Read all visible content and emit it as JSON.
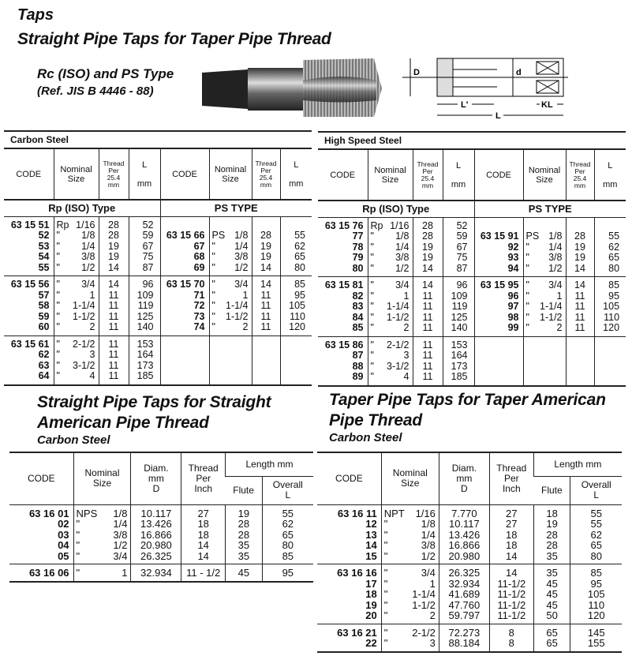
{
  "header": {
    "category": "Taps",
    "title": "Straight Pipe Taps for Taper Pipe Thread",
    "subtitle": "Rc (ISO) and PS Type",
    "reference": "(Ref. JIS B 4446 - 88)"
  },
  "diagram": {
    "labels": {
      "D": "D",
      "d": "d",
      "L_prime": "L'",
      "KL": "KL",
      "L": "L"
    }
  },
  "top_headers": {
    "code": "CODE",
    "nominal": "Nominal\nSize",
    "thread": "Thread\nPer\n25.4\nmm",
    "length": "L\n\nmm"
  },
  "top_tables": [
    {
      "material": "Carbon Steel",
      "sections": [
        {
          "title": "Rp (ISO) Type",
          "groups": [
            [
              [
                "63 15 51",
                "Rp",
                "1/16",
                "28",
                "52"
              ],
              [
                "52",
                "\"",
                "1/8",
                "28",
                "59"
              ],
              [
                "53",
                "\"",
                "1/4",
                "19",
                "67"
              ],
              [
                "54",
                "\"",
                "3/8",
                "19",
                "75"
              ],
              [
                "55",
                "\"",
                "1/2",
                "14",
                "87"
              ]
            ],
            [
              [
                "63 15 56",
                "\"",
                "3/4",
                "14",
                "96"
              ],
              [
                "57",
                "\"",
                "1",
                "11",
                "109"
              ],
              [
                "58",
                "\"",
                "1-1/4",
                "11",
                "119"
              ],
              [
                "59",
                "\"",
                "1-1/2",
                "11",
                "125"
              ],
              [
                "60",
                "\"",
                "2",
                "11",
                "140"
              ]
            ],
            [
              [
                "63 15 61",
                "\"",
                "2-1/2",
                "11",
                "153"
              ],
              [
                "62",
                "\"",
                "3",
                "11",
                "164"
              ],
              [
                "63",
                "\"",
                "3-1/2",
                "11",
                "173"
              ],
              [
                "64",
                "\"",
                "4",
                "11",
                "185"
              ]
            ]
          ]
        },
        {
          "title": "PS TYPE",
          "groups": [
            [
              [
                "63 15 66",
                "PS",
                "1/8",
                "28",
                "55"
              ],
              [
                "67",
                "\"",
                "1/4",
                "19",
                "62"
              ],
              [
                "68",
                "\"",
                "3/8",
                "19",
                "65"
              ],
              [
                "69",
                "\"",
                "1/2",
                "14",
                "80"
              ]
            ],
            [
              [
                "63 15 70",
                "\"",
                "3/4",
                "14",
                "85"
              ],
              [
                "71",
                "\"",
                "1",
                "11",
                "95"
              ],
              [
                "72",
                "\"",
                "1-1/4",
                "11",
                "105"
              ],
              [
                "73",
                "\"",
                "1-1/2",
                "11",
                "110"
              ],
              [
                "74",
                "\"",
                "2",
                "11",
                "120"
              ]
            ],
            []
          ]
        }
      ]
    },
    {
      "material": "High Speed Steel",
      "sections": [
        {
          "title": "Rp (ISO) Type",
          "groups": [
            [
              [
                "63 15 76",
                "Rp",
                "1/16",
                "28",
                "52"
              ],
              [
                "77",
                "\"",
                "1/8",
                "28",
                "59"
              ],
              [
                "78",
                "\"",
                "1/4",
                "19",
                "67"
              ],
              [
                "79",
                "\"",
                "3/8",
                "19",
                "75"
              ],
              [
                "80",
                "\"",
                "1/2",
                "14",
                "87"
              ]
            ],
            [
              [
                "63 15 81",
                "\"",
                "3/4",
                "14",
                "96"
              ],
              [
                "82",
                "\"",
                "1",
                "11",
                "109"
              ],
              [
                "83",
                "\"",
                "1-1/4",
                "11",
                "119"
              ],
              [
                "84",
                "\"",
                "1-1/2",
                "11",
                "125"
              ],
              [
                "85",
                "\"",
                "2",
                "11",
                "140"
              ]
            ],
            [
              [
                "63 15 86",
                "\"",
                "2-1/2",
                "11",
                "153"
              ],
              [
                "87",
                "\"",
                "3",
                "11",
                "164"
              ],
              [
                "88",
                "\"",
                "3-1/2",
                "11",
                "173"
              ],
              [
                "89",
                "\"",
                "4",
                "11",
                "185"
              ]
            ]
          ]
        },
        {
          "title": "PS TYPE",
          "groups": [
            [
              [
                "63 15 91",
                "PS",
                "1/8",
                "28",
                "55"
              ],
              [
                "92",
                "\"",
                "1/4",
                "19",
                "62"
              ],
              [
                "93",
                "\"",
                "3/8",
                "19",
                "65"
              ],
              [
                "94",
                "\"",
                "1/2",
                "14",
                "80"
              ]
            ],
            [
              [
                "63 15 95",
                "\"",
                "3/4",
                "14",
                "85"
              ],
              [
                "96",
                "\"",
                "1",
                "11",
                "95"
              ],
              [
                "97",
                "\"",
                "1-1/4",
                "11",
                "105"
              ],
              [
                "98",
                "\"",
                "1-1/2",
                "11",
                "110"
              ],
              [
                "99",
                "\"",
                "2",
                "11",
                "120"
              ]
            ],
            []
          ]
        }
      ]
    }
  ],
  "bottom_headers": {
    "code": "CODE",
    "nominal": "Nominal\nSize",
    "diam": "Diam.\nmm\nD",
    "thread": "Thread\nPer\nInch",
    "length": "Length mm",
    "flute": "Flute",
    "overall": "Overall\nL"
  },
  "bottom_tables": [
    {
      "title": "Straight Pipe Taps for Straight\nAmerican Pipe Thread",
      "material": "Carbon Steel",
      "groups": [
        [
          [
            "63 16 01",
            "NPS",
            "1/8",
            "10.117",
            "27",
            "19",
            "55"
          ],
          [
            "02",
            "\"",
            "1/4",
            "13.426",
            "18",
            "28",
            "62"
          ],
          [
            "03",
            "\"",
            "3/8",
            "16.866",
            "18",
            "28",
            "65"
          ],
          [
            "04",
            "\"",
            "1/2",
            "20.980",
            "14",
            "35",
            "80"
          ],
          [
            "05",
            "\"",
            "3/4",
            "26.325",
            "14",
            "35",
            "85"
          ]
        ],
        [
          [
            "63 16 06",
            "\"",
            "1",
            "32.934",
            "11 - 1/2",
            "45",
            "95"
          ]
        ]
      ]
    },
    {
      "title": "Taper Pipe Taps for Taper American\nPipe Thread",
      "material": "Carbon Steel",
      "groups": [
        [
          [
            "63 16 11",
            "NPT",
            "1/16",
            "7.770",
            "27",
            "18",
            "55"
          ],
          [
            "12",
            "\"",
            "1/8",
            "10.117",
            "27",
            "19",
            "55"
          ],
          [
            "13",
            "\"",
            "1/4",
            "13.426",
            "18",
            "28",
            "62"
          ],
          [
            "14",
            "\"",
            "3/8",
            "16.866",
            "18",
            "28",
            "65"
          ],
          [
            "15",
            "\"",
            "1/2",
            "20.980",
            "14",
            "35",
            "80"
          ]
        ],
        [
          [
            "63 16 16",
            "\"",
            "3/4",
            "26.325",
            "14",
            "35",
            "85"
          ],
          [
            "17",
            "\"",
            "1",
            "32.934",
            "11-1/2",
            "45",
            "95"
          ],
          [
            "18",
            "\"",
            "1-1/4",
            "41.689",
            "11-1/2",
            "45",
            "105"
          ],
          [
            "19",
            "\"",
            "1-1/2",
            "47.760",
            "11-1/2",
            "45",
            "110"
          ],
          [
            "20",
            "\"",
            "2",
            "59.797",
            "11-1/2",
            "50",
            "120"
          ]
        ],
        [
          [
            "63 16 21",
            "\"",
            "2-1/2",
            "72.273",
            "8",
            "65",
            "145"
          ],
          [
            "22",
            "\"",
            "3",
            "88.184",
            "8",
            "65",
            "155"
          ]
        ]
      ]
    }
  ]
}
